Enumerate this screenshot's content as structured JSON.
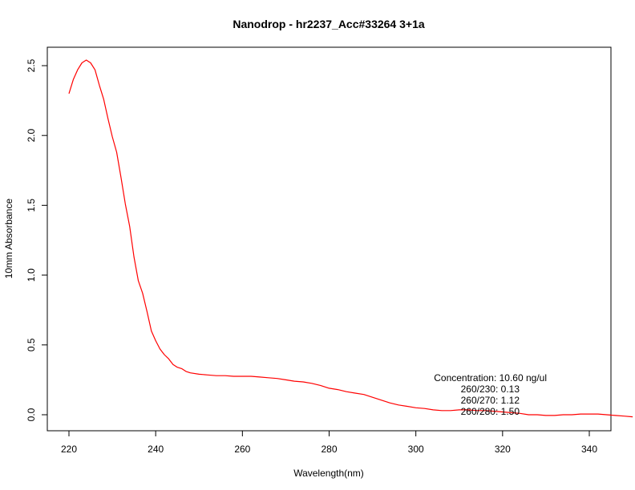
{
  "chart_data": {
    "type": "line",
    "title": "Nanodrop - hr2237_Acc#33264 3+1a",
    "xlabel": "Wavelength(nm)",
    "ylabel": "10mm Absorbance",
    "xlim": [
      214,
      355
    ],
    "ylim": [
      -0.1,
      2.6
    ],
    "x_ticks": [
      220,
      240,
      260,
      280,
      300,
      320,
      340
    ],
    "y_ticks": [
      0.0,
      0.5,
      1.0,
      1.5,
      2.0,
      2.5
    ],
    "x_tick_labels": [
      "220",
      "240",
      "260",
      "280",
      "300",
      "320",
      "340"
    ],
    "y_tick_labels": [
      "0.0",
      "0.5",
      "1.0",
      "1.5",
      "2.0",
      "2.5"
    ],
    "grid": false,
    "series": [
      {
        "color": "#ff0000",
        "x": [
          220,
          221,
          222,
          223,
          224,
          225,
          226,
          227,
          228,
          229,
          230,
          231,
          232,
          233,
          234,
          235,
          236,
          237,
          238,
          239,
          240,
          241,
          242,
          243,
          244,
          245,
          246,
          247,
          248,
          250,
          252,
          254,
          256,
          258,
          260,
          262,
          264,
          266,
          268,
          270,
          272,
          274,
          276,
          278,
          280,
          282,
          284,
          286,
          288,
          290,
          292,
          294,
          296,
          298,
          300,
          302,
          304,
          306,
          308,
          310,
          312,
          314,
          316,
          318,
          320,
          322,
          324,
          326,
          328,
          330,
          332,
          334,
          336,
          338,
          340,
          342,
          344,
          346,
          348,
          350
        ],
        "y": [
          2.3,
          2.4,
          2.47,
          2.52,
          2.54,
          2.52,
          2.47,
          2.36,
          2.26,
          2.12,
          1.99,
          1.88,
          1.7,
          1.51,
          1.35,
          1.13,
          0.96,
          0.87,
          0.74,
          0.6,
          0.53,
          0.47,
          0.43,
          0.4,
          0.36,
          0.34,
          0.33,
          0.31,
          0.3,
          0.29,
          0.285,
          0.28,
          0.28,
          0.275,
          0.275,
          0.275,
          0.27,
          0.265,
          0.26,
          0.25,
          0.24,
          0.235,
          0.225,
          0.21,
          0.19,
          0.18,
          0.165,
          0.155,
          0.145,
          0.125,
          0.105,
          0.085,
          0.07,
          0.06,
          0.05,
          0.045,
          0.035,
          0.03,
          0.03,
          0.035,
          0.035,
          0.03,
          0.03,
          0.025,
          0.02,
          0.015,
          0.01,
          0.0,
          0.0,
          -0.005,
          -0.005,
          0.0,
          0.0,
          0.005,
          0.005,
          0.005,
          0.0,
          -0.005,
          -0.01,
          -0.015
        ]
      }
    ],
    "annotations": [
      "Concentration: 10.60 ng/ul",
      "260/230: 0.13",
      "260/270: 1.12",
      "260/280: 1.50"
    ]
  }
}
